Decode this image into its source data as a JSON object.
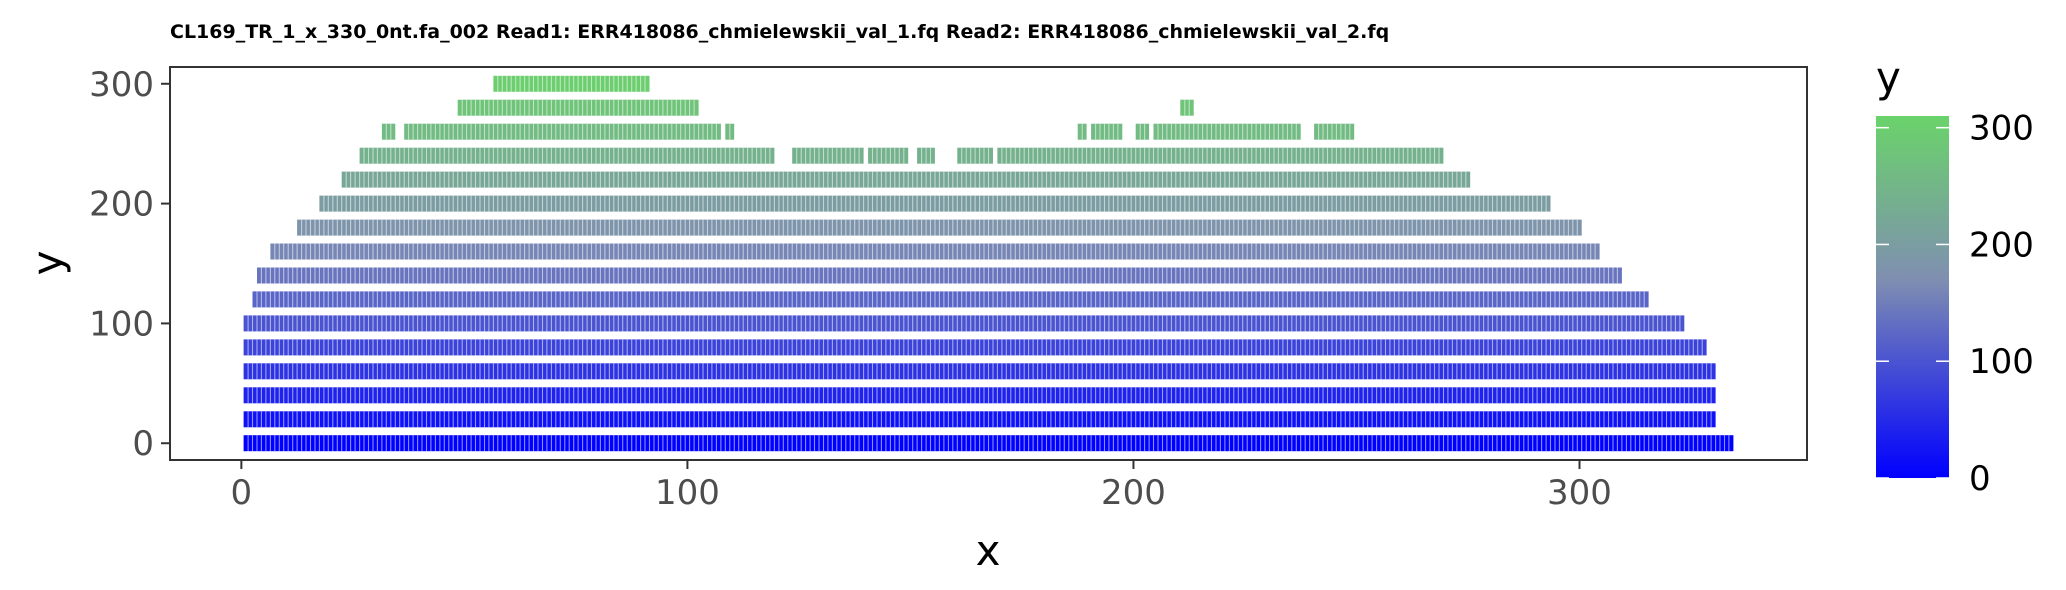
{
  "chart_data": {
    "type": "heatmap",
    "title": "CL169_TR_1_x_330_0nt.fa_002 Read1: ERR418086_chmielewskii_val_1.fq Read2: ERR418086_chmielewskii_val_2.fq",
    "xlabel": "x",
    "ylabel": "y",
    "xlim": [
      -16,
      351
    ],
    "ylim": [
      -14,
      314
    ],
    "x_ticks": [
      "0",
      "100",
      "200",
      "300"
    ],
    "x_tick_values": [
      0,
      100,
      200,
      300
    ],
    "y_ticks": [
      "0",
      "100",
      "200",
      "300"
    ],
    "y_tick_values": [
      0,
      100,
      200,
      300
    ],
    "color_scale": {
      "title": "y",
      "low": "#0000ff",
      "mid": "#7f8fb0",
      "high": "#6ad36a",
      "range": [
        0,
        310
      ],
      "ticks": [
        "0",
        "100",
        "200",
        "300"
      ],
      "tick_values": [
        0,
        100,
        200,
        300
      ]
    },
    "rows": [
      {
        "y": 0,
        "segments": [
          [
            1,
            334
          ]
        ]
      },
      {
        "y": 20,
        "segments": [
          [
            1,
            330
          ]
        ]
      },
      {
        "y": 40,
        "segments": [
          [
            1,
            330
          ]
        ]
      },
      {
        "y": 60,
        "segments": [
          [
            1,
            330
          ]
        ]
      },
      {
        "y": 80,
        "segments": [
          [
            1,
            328
          ]
        ]
      },
      {
        "y": 100,
        "segments": [
          [
            1,
            323
          ]
        ]
      },
      {
        "y": 120,
        "segments": [
          [
            3,
            315
          ]
        ]
      },
      {
        "y": 140,
        "segments": [
          [
            4,
            309
          ]
        ]
      },
      {
        "y": 160,
        "segments": [
          [
            7,
            304
          ]
        ]
      },
      {
        "y": 180,
        "segments": [
          [
            13,
            300
          ]
        ]
      },
      {
        "y": 200,
        "segments": [
          [
            18,
            293
          ]
        ]
      },
      {
        "y": 220,
        "segments": [
          [
            23,
            275
          ]
        ]
      },
      {
        "y": 240,
        "segments": [
          [
            27,
            119
          ],
          [
            124,
            139
          ],
          [
            141,
            149
          ],
          [
            152,
            155
          ],
          [
            161,
            168
          ],
          [
            170,
            269
          ]
        ]
      },
      {
        "y": 260,
        "segments": [
          [
            32,
            34
          ],
          [
            37,
            107
          ],
          [
            109,
            110
          ],
          [
            188,
            189
          ],
          [
            191,
            197
          ],
          [
            201,
            203
          ],
          [
            205,
            237
          ],
          [
            241,
            249
          ]
        ]
      },
      {
        "y": 280,
        "segments": [
          [
            49,
            102
          ],
          [
            211,
            213
          ]
        ]
      },
      {
        "y": 300,
        "segments": [
          [
            57,
            91
          ]
        ]
      }
    ]
  }
}
